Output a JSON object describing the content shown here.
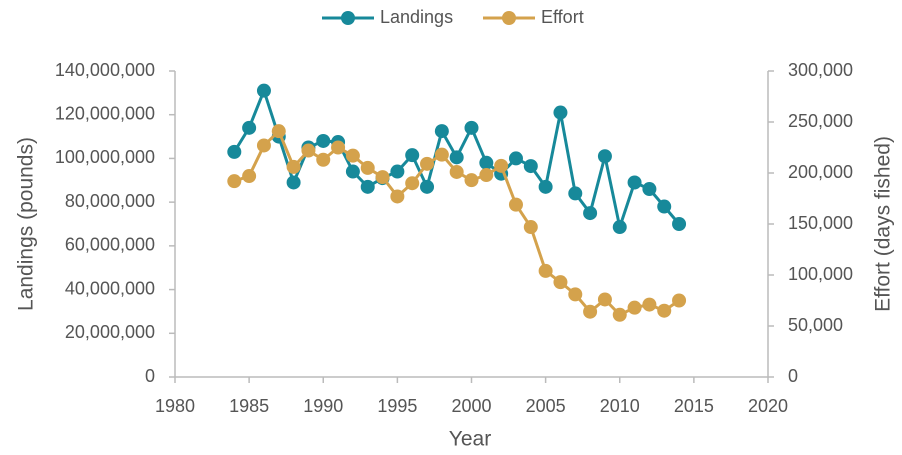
{
  "chart_data": {
    "type": "line",
    "x": [
      1984,
      1985,
      1986,
      1987,
      1988,
      1989,
      1990,
      1991,
      1992,
      1993,
      1994,
      1995,
      1996,
      1997,
      1998,
      1999,
      2000,
      2001,
      2002,
      2003,
      2004,
      2005,
      2006,
      2007,
      2008,
      2009,
      2010,
      2011,
      2012,
      2013,
      2014
    ],
    "series": [
      {
        "name": "Landings",
        "color": "#17899a",
        "values": [
          103000000,
          114000000,
          131000000,
          110000000,
          89000000,
          105000000,
          108000000,
          107500000,
          94000000,
          87000000,
          91000000,
          94000000,
          101500000,
          87000000,
          112500000,
          100500000,
          114000000,
          98000000,
          93000000,
          100000000,
          96500000,
          87000000,
          121000000,
          84000000,
          75000000,
          101000000,
          68600000,
          89000000,
          86000000,
          78000000,
          70000000
        ]
      },
      {
        "name": "Effort",
        "color": "#d4a24c",
        "axis": "y2",
        "values": [
          192000,
          197000,
          227000,
          241000,
          206000,
          222000,
          213000,
          225000,
          217000,
          205000,
          196000,
          177000,
          190000,
          209000,
          218000,
          201000,
          193000,
          198000,
          207000,
          169000,
          147000,
          104000,
          93000,
          81000,
          64000,
          76000,
          61000,
          68000,
          71000,
          65000,
          75000
        ]
      }
    ],
    "x_label": "Year",
    "y_label": "Landings (pounds)",
    "y2_label": "Effort (days fished)",
    "xlim": [
      1980,
      2020
    ],
    "xticks": [
      1980,
      1985,
      1990,
      1995,
      2000,
      2005,
      2010,
      2015,
      2020
    ],
    "ylim": [
      0,
      140000000
    ],
    "yticks": [
      0,
      {
        "value": 20000000,
        "label": "20,000,000"
      },
      {
        "value": 40000000,
        "label": "40,000,000"
      },
      {
        "value": 60000000,
        "label": "60,000,000"
      },
      {
        "value": 80000000,
        "label": "80,000,000"
      },
      {
        "value": 100000000,
        "label": "100,000,000"
      },
      {
        "value": 120000000,
        "label": "120,000,000"
      },
      {
        "value": 140000000,
        "label": "140,000,000"
      }
    ],
    "y2lim": [
      0,
      300000
    ],
    "y2ticks": [
      0,
      {
        "value": 50000,
        "label": "50,000"
      },
      {
        "value": 100000,
        "label": "100,000"
      },
      {
        "value": 150000,
        "label": "150,000"
      },
      {
        "value": 200000,
        "label": "200,000"
      },
      {
        "value": 250000,
        "label": "250,000"
      },
      {
        "value": 300000,
        "label": "300,000"
      }
    ],
    "legend": "top",
    "grid": false
  }
}
